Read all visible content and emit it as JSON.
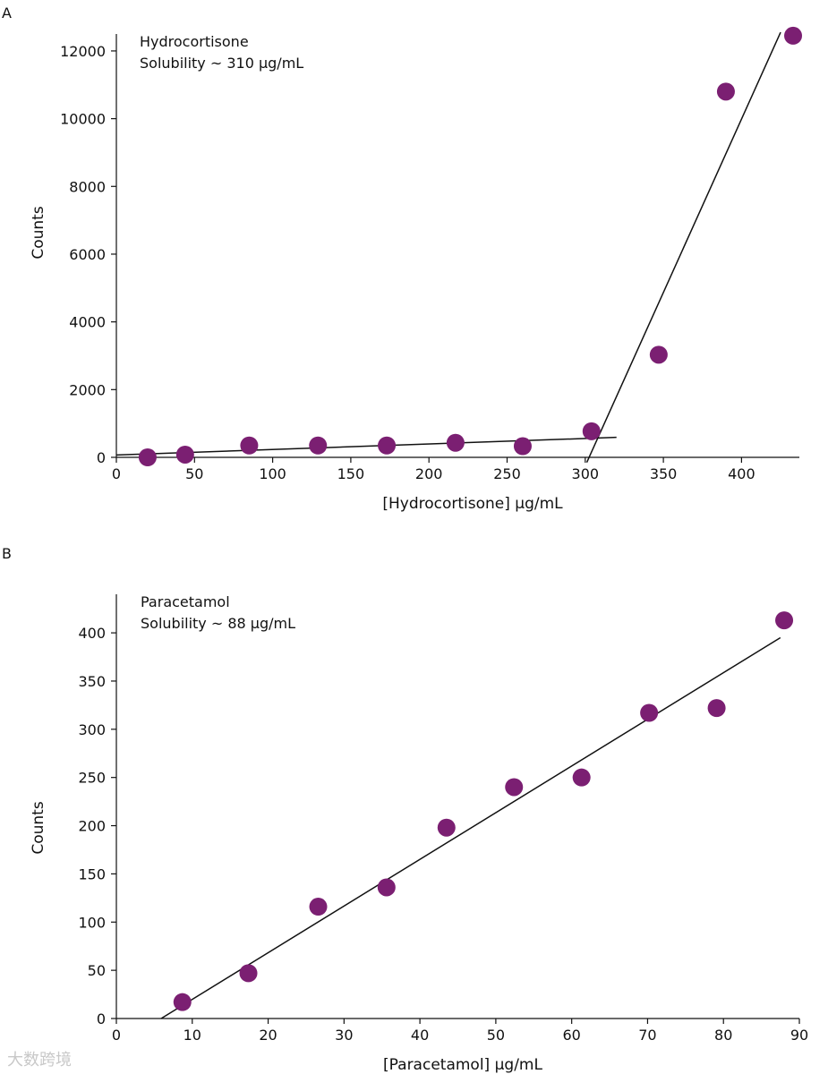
{
  "chart_data": [
    {
      "panel": "A",
      "type": "scatter",
      "annotation_lines": [
        "Hydrocortisone",
        "Solubility ~ 310 µg/mL"
      ],
      "xlabel": "[Hydrocortisone] µg/mL",
      "ylabel": "Counts",
      "xlim": [
        0,
        437
      ],
      "ylim": [
        0,
        12500
      ],
      "xticks": [
        0,
        50,
        100,
        150,
        200,
        250,
        300,
        350,
        400
      ],
      "yticks": [
        0,
        2000,
        4000,
        6000,
        8000,
        10000,
        12000
      ],
      "points": [
        {
          "x": 20,
          "y": 0
        },
        {
          "x": 44,
          "y": 80
        },
        {
          "x": 85,
          "y": 350
        },
        {
          "x": 129,
          "y": 350
        },
        {
          "x": 173,
          "y": 350
        },
        {
          "x": 217,
          "y": 430
        },
        {
          "x": 260,
          "y": 330
        },
        {
          "x": 304,
          "y": 770
        },
        {
          "x": 347,
          "y": 3030
        },
        {
          "x": 390,
          "y": 10800
        },
        {
          "x": 433,
          "y": 12450
        }
      ],
      "fit_lines": [
        {
          "x": [
            0,
            320
          ],
          "y": [
            70,
            590
          ]
        },
        {
          "x": [
            301,
            425
          ],
          "y": [
            -150,
            12550
          ]
        }
      ],
      "marker_color": "#7b1f72",
      "line_color": "#111111"
    },
    {
      "panel": "B",
      "type": "scatter",
      "annotation_lines": [
        "Paracetamol",
        "Solubility ~ 88 µg/mL"
      ],
      "xlabel": "[Paracetamol] µg/mL",
      "ylabel": "Counts",
      "xlim": [
        0,
        90
      ],
      "ylim": [
        0,
        440
      ],
      "xticks": [
        0,
        10,
        20,
        30,
        40,
        50,
        60,
        70,
        80,
        90
      ],
      "yticks": [
        0,
        50,
        100,
        150,
        200,
        250,
        300,
        350,
        400
      ],
      "points": [
        {
          "x": 8.7,
          "y": 17
        },
        {
          "x": 17.4,
          "y": 47
        },
        {
          "x": 26.6,
          "y": 116
        },
        {
          "x": 35.6,
          "y": 136
        },
        {
          "x": 43.5,
          "y": 198
        },
        {
          "x": 52.4,
          "y": 240
        },
        {
          "x": 61.3,
          "y": 250
        },
        {
          "x": 70.2,
          "y": 317
        },
        {
          "x": 79.1,
          "y": 322
        },
        {
          "x": 88.0,
          "y": 413
        }
      ],
      "fit_lines": [
        {
          "x": [
            5.9,
            87.5
          ],
          "y": [
            0,
            395
          ]
        }
      ],
      "marker_color": "#7b1f72",
      "line_color": "#111111"
    }
  ],
  "watermark": "大数跨境"
}
